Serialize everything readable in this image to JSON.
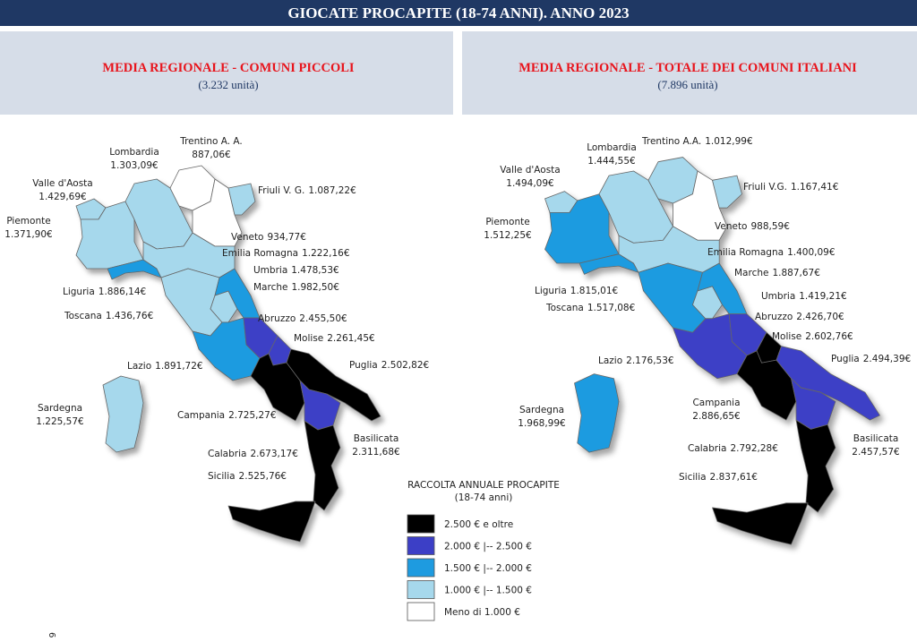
{
  "header": {
    "title": "GIOCATE PROCAPITE (18-74 ANNI). ANNO 2023"
  },
  "panels": [
    {
      "title": "MEDIA REGIONALE - COMUNI PICCOLI",
      "subtitle": "(3.232 unità)",
      "regions": [
        {
          "name": "Valle d'Aosta",
          "value": "1.429,69€",
          "color": "#a6d8ec"
        },
        {
          "name": "Piemonte",
          "value": "1.371,90€",
          "color": "#a6d8ec"
        },
        {
          "name": "Lombardia",
          "value": "1.303,09€",
          "color": "#a6d8ec"
        },
        {
          "name": "Trentino A. A.",
          "value": "887,06€",
          "color": "#ffffff"
        },
        {
          "name": "Veneto",
          "value": "934,77€",
          "color": "#ffffff"
        },
        {
          "name": "Friuli V. G.",
          "value": "1.087,22€",
          "color": "#a6d8ec"
        },
        {
          "name": "Liguria",
          "value": "1.886,14€",
          "color": "#1e9be0"
        },
        {
          "name": "Emilia Romagna",
          "value": "1.222,16€",
          "color": "#a6d8ec"
        },
        {
          "name": "Toscana",
          "value": "1.436,76€",
          "color": "#a6d8ec"
        },
        {
          "name": "Umbria",
          "value": "1.478,53€",
          "color": "#a6d8ec"
        },
        {
          "name": "Marche",
          "value": "1.982,50€",
          "color": "#1e9be0"
        },
        {
          "name": "Lazio",
          "value": "1.891,72€",
          "color": "#1e9be0"
        },
        {
          "name": "Abruzzo",
          "value": "2.455,50€",
          "color": "#3c3fc6"
        },
        {
          "name": "Molise",
          "value": "2.261,45€",
          "color": "#3c3fc6"
        },
        {
          "name": "Campania",
          "value": "2.725,27€",
          "color": "#000000"
        },
        {
          "name": "Puglia",
          "value": "2.502,82€",
          "color": "#000000"
        },
        {
          "name": "Basilicata",
          "value": "2.311,68€",
          "color": "#3c3fc6"
        },
        {
          "name": "Calabria",
          "value": "2.673,17€",
          "color": "#000000"
        },
        {
          "name": "Sicilia",
          "value": "2.525,76€",
          "color": "#000000"
        },
        {
          "name": "Sardegna",
          "value": "1.225,57€",
          "color": "#a6d8ec"
        }
      ]
    },
    {
      "title": "MEDIA REGIONALE - TOTALE DEI COMUNI ITALIANI",
      "subtitle": "(7.896 unità)",
      "regions": [
        {
          "name": "Valle d'Aosta",
          "value": "1.494,09€",
          "color": "#a6d8ec"
        },
        {
          "name": "Piemonte",
          "value": "1.512,25€",
          "color": "#1e9be0"
        },
        {
          "name": "Lombardia",
          "value": "1.444,55€",
          "color": "#a6d8ec"
        },
        {
          "name": "Trentino A.A.",
          "value": "1.012,99€",
          "color": "#a6d8ec"
        },
        {
          "name": "Veneto",
          "value": "988,59€",
          "color": "#ffffff"
        },
        {
          "name": "Friuli V.G.",
          "value": "1.167,41€",
          "color": "#a6d8ec"
        },
        {
          "name": "Liguria",
          "value": "1.815,01€",
          "color": "#1e9be0"
        },
        {
          "name": "Emilia Romagna",
          "value": "1.400,09€",
          "color": "#a6d8ec"
        },
        {
          "name": "Toscana",
          "value": "1.517,08€",
          "color": "#1e9be0"
        },
        {
          "name": "Umbria",
          "value": "1.419,21€",
          "color": "#a6d8ec"
        },
        {
          "name": "Marche",
          "value": "1.887,67€",
          "color": "#1e9be0"
        },
        {
          "name": "Lazio",
          "value": "2.176,53€",
          "color": "#3c3fc6"
        },
        {
          "name": "Abruzzo",
          "value": "2.426,70€",
          "color": "#3c3fc6"
        },
        {
          "name": "Molise",
          "value": "2.602,76€",
          "color": "#000000"
        },
        {
          "name": "Campania",
          "value": "2.886,65€",
          "color": "#000000"
        },
        {
          "name": "Puglia",
          "value": "2.494,39€",
          "color": "#3c3fc6"
        },
        {
          "name": "Basilicata",
          "value": "2.457,57€",
          "color": "#3c3fc6"
        },
        {
          "name": "Calabria",
          "value": "2.792,28€",
          "color": "#000000"
        },
        {
          "name": "Sicilia",
          "value": "2.837,61€",
          "color": "#000000"
        },
        {
          "name": "Sardegna",
          "value": "1.968,99€",
          "color": "#1e9be0"
        }
      ]
    }
  ],
  "legend": {
    "title": "RACCOLTA ANNUALE PROCAPITE",
    "subtitle": "(18-74 anni)",
    "items": [
      {
        "label": "2.500 € e oltre",
        "color": "#000000"
      },
      {
        "label": "2.000 € |-- 2.500 €",
        "color": "#3c3fc6"
      },
      {
        "label": "1.500 € |-- 2.000 €",
        "color": "#1e9be0"
      },
      {
        "label": "1.000 € |-- 1.500 €",
        "color": "#a6d8ec"
      },
      {
        "label": "Meno di 1.000 €",
        "color": "#ffffff"
      }
    ]
  },
  "page_number": "6"
}
